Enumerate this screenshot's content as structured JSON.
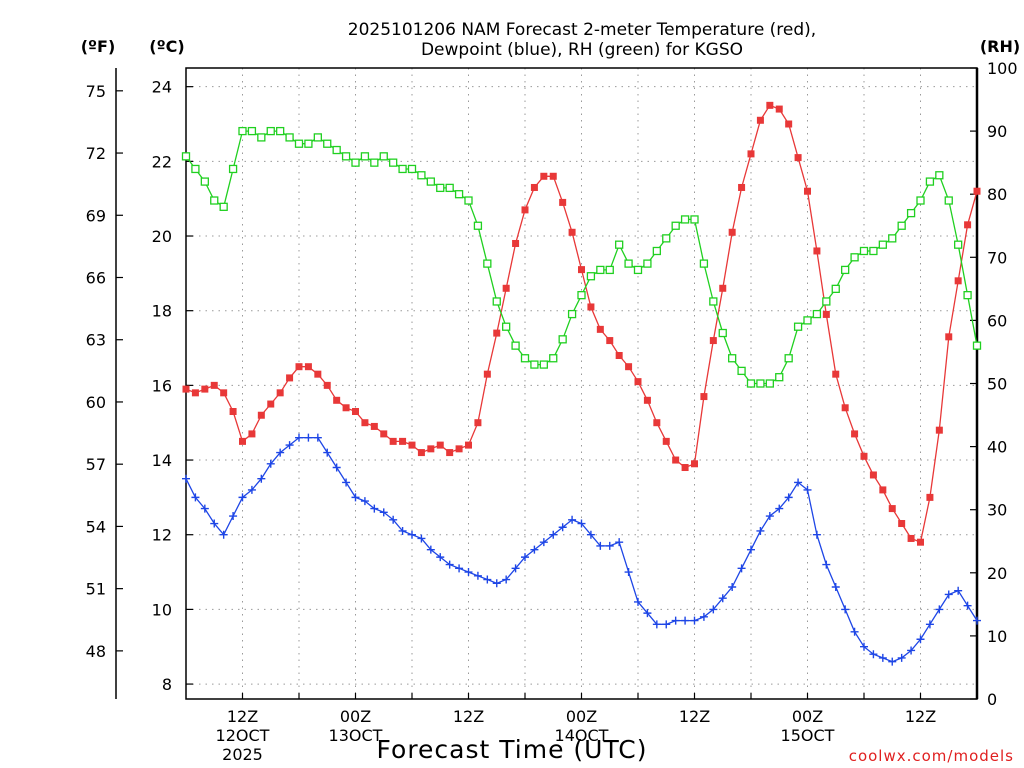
{
  "title_line1": "2025101206 NAM Forecast 2-meter Temperature (red),",
  "title_line2": "Dewpoint (blue), RH (green) for KGSO",
  "credit": "coolwx.com/models",
  "chart_data": {
    "type": "line",
    "title": "2025101206 NAM Forecast 2-meter Temperature (red), Dewpoint (blue), RH (green) for KGSO",
    "xlabel": "Forecast Time (UTC)",
    "ylabel_left_f": "(ºF)",
    "ylabel_left_c": "(ºC)",
    "ylabel_right": "(RH)",
    "x_unit": "forecast hour (from 2025101206)",
    "xlim": [
      0,
      84
    ],
    "ylim_c": [
      7.6,
      24.5
    ],
    "ylim_rh": [
      0,
      100
    ],
    "x_ticks": [
      {
        "hour": 6,
        "lines": [
          "12Z",
          "12OCT",
          "2025"
        ]
      },
      {
        "hour": 18,
        "lines": [
          "00Z",
          "13OCT"
        ]
      },
      {
        "hour": 30,
        "lines": [
          "12Z"
        ]
      },
      {
        "hour": 42,
        "lines": [
          "00Z",
          "14OCT"
        ]
      },
      {
        "hour": 54,
        "lines": [
          "12Z"
        ]
      },
      {
        "hour": 66,
        "lines": [
          "00Z",
          "15OCT"
        ]
      },
      {
        "hour": 78,
        "lines": [
          "12Z"
        ]
      }
    ],
    "y_ticks_c": [
      "8",
      "10",
      "12",
      "14",
      "16",
      "18",
      "20",
      "22",
      "24"
    ],
    "y_ticks_f": [
      "48",
      "51",
      "54",
      "57",
      "60",
      "63",
      "66",
      "69",
      "72",
      "75"
    ],
    "y_ticks_rh": [
      "0",
      "10",
      "20",
      "30",
      "40",
      "50",
      "60",
      "70",
      "80",
      "90",
      "100"
    ],
    "grid": true,
    "series": [
      {
        "name": "Temperature",
        "color": "#e83838",
        "marker": "filled-square",
        "axis": "c",
        "x": [
          0,
          1,
          2,
          3,
          4,
          5,
          6,
          7,
          8,
          9,
          10,
          11,
          12,
          13,
          14,
          15,
          16,
          17,
          18,
          19,
          20,
          21,
          22,
          23,
          24,
          25,
          26,
          27,
          28,
          29,
          30,
          31,
          32,
          33,
          34,
          35,
          36,
          37,
          38,
          39,
          40,
          41,
          42,
          43,
          44,
          45,
          46,
          47,
          48,
          49,
          50,
          51,
          52,
          53,
          54,
          55,
          56,
          57,
          58,
          59,
          60,
          61,
          62,
          63,
          64,
          65,
          66,
          67,
          68,
          69,
          70,
          71,
          72,
          73,
          74,
          75,
          76,
          77,
          78,
          79,
          80,
          81,
          82,
          83,
          84
        ],
        "values": [
          15.9,
          15.8,
          15.9,
          16.0,
          15.8,
          15.3,
          14.5,
          14.7,
          15.2,
          15.5,
          15.8,
          16.2,
          16.5,
          16.5,
          16.3,
          16.0,
          15.6,
          15.4,
          15.3,
          15.0,
          14.9,
          14.7,
          14.5,
          14.5,
          14.4,
          14.2,
          14.3,
          14.4,
          14.2,
          14.3,
          14.4,
          15.0,
          16.3,
          17.4,
          18.6,
          19.8,
          20.7,
          21.3,
          21.6,
          21.6,
          20.9,
          20.1,
          19.1,
          18.1,
          17.5,
          17.2,
          16.8,
          16.5,
          16.1,
          15.6,
          15.0,
          14.5,
          14.0,
          13.8,
          13.9,
          15.7,
          17.2,
          18.6,
          20.1,
          21.3,
          22.2,
          23.1,
          23.5,
          23.4,
          23.0,
          22.1,
          21.2,
          19.6,
          17.9,
          16.3,
          15.4,
          14.7,
          14.1,
          13.6,
          13.2,
          12.7,
          12.3,
          11.9,
          11.8,
          13.0,
          14.8,
          17.3,
          18.8,
          20.3,
          21.2
        ]
      },
      {
        "name": "Dewpoint",
        "color": "#1e46e6",
        "marker": "plus",
        "axis": "c",
        "x": [
          0,
          1,
          2,
          3,
          4,
          5,
          6,
          7,
          8,
          9,
          10,
          11,
          12,
          13,
          14,
          15,
          16,
          17,
          18,
          19,
          20,
          21,
          22,
          23,
          24,
          25,
          26,
          27,
          28,
          29,
          30,
          31,
          32,
          33,
          34,
          35,
          36,
          37,
          38,
          39,
          40,
          41,
          42,
          43,
          44,
          45,
          46,
          47,
          48,
          49,
          50,
          51,
          52,
          53,
          54,
          55,
          56,
          57,
          58,
          59,
          60,
          61,
          62,
          63,
          64,
          65,
          66,
          67,
          68,
          69,
          70,
          71,
          72,
          73,
          74,
          75,
          76,
          77,
          78,
          79,
          80,
          81,
          82,
          83,
          84
        ],
        "values": [
          13.5,
          13.0,
          12.7,
          12.3,
          12.0,
          12.5,
          13.0,
          13.2,
          13.5,
          13.9,
          14.2,
          14.4,
          14.6,
          14.6,
          14.6,
          14.2,
          13.8,
          13.4,
          13.0,
          12.9,
          12.7,
          12.6,
          12.4,
          12.1,
          12.0,
          11.9,
          11.6,
          11.4,
          11.2,
          11.1,
          11.0,
          10.9,
          10.8,
          10.7,
          10.8,
          11.1,
          11.4,
          11.6,
          11.8,
          12.0,
          12.2,
          12.4,
          12.3,
          12.0,
          11.7,
          11.7,
          11.8,
          11.0,
          10.2,
          9.9,
          9.6,
          9.6,
          9.7,
          9.7,
          9.7,
          9.8,
          10.0,
          10.3,
          10.6,
          11.1,
          11.6,
          12.1,
          12.5,
          12.7,
          13.0,
          13.4,
          13.2,
          12.0,
          11.2,
          10.6,
          10.0,
          9.4,
          9.0,
          8.8,
          8.7,
          8.6,
          8.7,
          8.9,
          9.2,
          9.6,
          10.0,
          10.4,
          10.5,
          10.1,
          9.7
        ]
      },
      {
        "name": "RH",
        "color": "#20d020",
        "marker": "open-square",
        "axis": "rh",
        "x": [
          0,
          1,
          2,
          3,
          4,
          5,
          6,
          7,
          8,
          9,
          10,
          11,
          12,
          13,
          14,
          15,
          16,
          17,
          18,
          19,
          20,
          21,
          22,
          23,
          24,
          25,
          26,
          27,
          28,
          29,
          30,
          31,
          32,
          33,
          34,
          35,
          36,
          37,
          38,
          39,
          40,
          41,
          42,
          43,
          44,
          45,
          46,
          47,
          48,
          49,
          50,
          51,
          52,
          53,
          54,
          55,
          56,
          57,
          58,
          59,
          60,
          61,
          62,
          63,
          64,
          65,
          66,
          67,
          68,
          69,
          70,
          71,
          72,
          73,
          74,
          75,
          76,
          77,
          78,
          79,
          80,
          81,
          82,
          83,
          84
        ],
        "values": [
          86,
          84,
          82,
          79,
          78,
          84,
          90,
          90,
          89,
          90,
          90,
          89,
          88,
          88,
          89,
          88,
          87,
          86,
          85,
          86,
          85,
          86,
          85,
          84,
          84,
          83,
          82,
          81,
          81,
          80,
          79,
          75,
          69,
          63,
          59,
          56,
          54,
          53,
          53,
          54,
          57,
          61,
          64,
          67,
          68,
          68,
          72,
          69,
          68,
          69,
          71,
          73,
          75,
          76,
          76,
          69,
          63,
          58,
          54,
          52,
          50,
          50,
          50,
          51,
          54,
          59,
          60,
          61,
          63,
          65,
          68,
          70,
          71,
          71,
          72,
          73,
          75,
          77,
          79,
          82,
          83,
          79,
          72,
          64,
          56
        ]
      }
    ]
  }
}
